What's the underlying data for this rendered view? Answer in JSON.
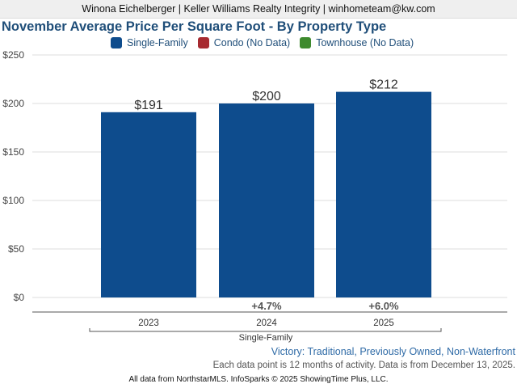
{
  "banner": "Winona Eichelberger | Keller Williams Realty Integrity | winhometeam@kw.com",
  "legend": [
    {
      "label": "Single-Family",
      "color": "#0e4c8d"
    },
    {
      "label": "Condo (No Data)",
      "color": "#a72a30"
    },
    {
      "label": "Townhouse (No Data)",
      "color": "#3e8a2e"
    }
  ],
  "footer": {
    "victory": "Victory: Traditional, Previously Owned, Non-Waterfront",
    "activity": "Each data point is 12 months of activity. Data is from December 13, 2025.",
    "copyright": "All data from NorthstarMLS. InfoSparks © 2025 ShowingTime Plus, LLC."
  },
  "chart_data": {
    "type": "bar",
    "title": "November Average Price Per Square Foot - By Property Type",
    "categories": [
      "2023",
      "2024",
      "2025"
    ],
    "group_label": "Single-Family",
    "series": [
      {
        "name": "Single-Family",
        "color": "#0e4c8d",
        "values": [
          191,
          200,
          212
        ]
      }
    ],
    "value_labels": [
      "$191",
      "$200",
      "$212"
    ],
    "change_labels": [
      "",
      "+4.7%",
      "+6.0%"
    ],
    "ylim": [
      0,
      250
    ],
    "yticks": [
      0,
      50,
      100,
      150,
      200,
      250
    ],
    "ytick_labels": [
      "$0",
      "$50",
      "$100",
      "$150",
      "$200",
      "$250"
    ],
    "grid": true
  }
}
